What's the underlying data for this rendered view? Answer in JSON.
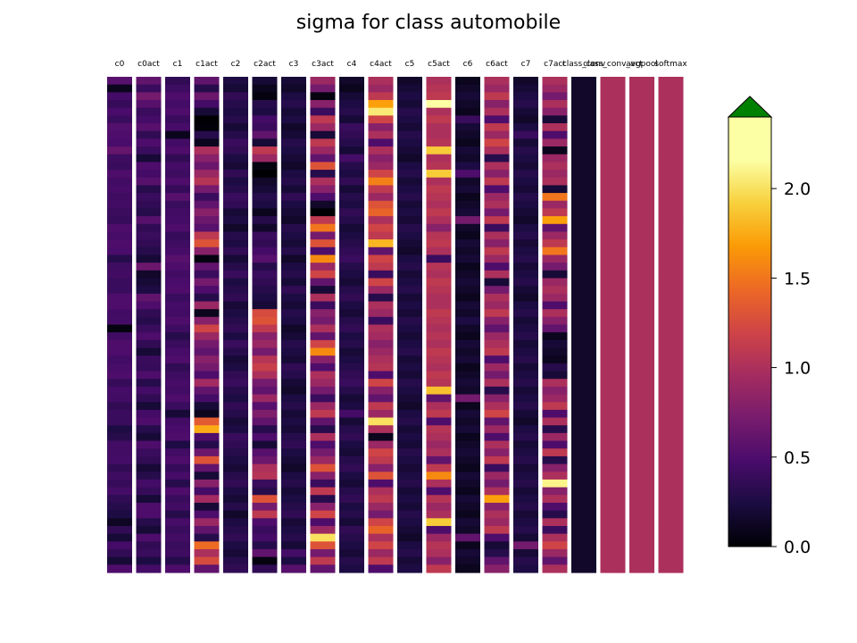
{
  "chart_data": {
    "type": "heatmap",
    "title": "sigma for class automobile",
    "columns": [
      "c0",
      "c0act",
      "c1",
      "c1act",
      "c2",
      "c2act",
      "c3",
      "c3act",
      "c4",
      "c4act",
      "c5",
      "c5act",
      "c6",
      "c6act",
      "c7",
      "c7act",
      "class_conv",
      "class_conv_act",
      "avgpool",
      "softmax"
    ],
    "rows_per_column": 64,
    "colorbar": {
      "cmap": "inferno",
      "vmin": 0.0,
      "vmax": 2.4,
      "ticks": [
        0.0,
        0.5,
        1.0,
        1.5,
        2.0
      ],
      "tick_labels": [
        "0.0",
        "0.5",
        "1.0",
        "1.5",
        "2.0"
      ],
      "extend": "max",
      "extend_color": "#008000"
    },
    "values": {
      "c0": [
        0.55,
        0.1,
        0.45,
        0.38,
        0.48,
        0.4,
        0.52,
        0.5,
        0.48,
        0.62,
        0.42,
        0.4,
        0.5,
        0.44,
        0.46,
        0.43,
        0.44,
        0.4,
        0.38,
        0.5,
        0.46,
        0.5,
        0.48,
        0.3,
        0.42,
        0.44,
        0.4,
        0.4,
        0.5,
        0.5,
        0.44,
        0.45,
        0.05,
        0.44,
        0.5,
        0.5,
        0.44,
        0.47,
        0.5,
        0.38,
        0.45,
        0.44,
        0.35,
        0.4,
        0.4,
        0.25,
        0.3,
        0.44,
        0.44,
        0.45,
        0.35,
        0.43,
        0.38,
        0.45,
        0.34,
        0.3,
        0.25,
        0.12,
        0.35,
        0.2,
        0.45,
        0.35,
        0.2,
        0.5
      ],
      "c0act": [
        0.6,
        0.4,
        0.7,
        0.55,
        0.4,
        0.45,
        0.55,
        0.35,
        0.5,
        0.4,
        0.2,
        0.5,
        0.45,
        0.55,
        0.3,
        0.4,
        0.35,
        0.3,
        0.55,
        0.35,
        0.4,
        0.35,
        0.3,
        0.2,
        0.65,
        0.15,
        0.2,
        0.25,
        0.6,
        0.5,
        0.35,
        0.3,
        0.4,
        0.5,
        0.35,
        0.2,
        0.4,
        0.38,
        0.5,
        0.3,
        0.45,
        0.35,
        0.2,
        0.45,
        0.5,
        0.3,
        0.2,
        0.5,
        0.4,
        0.35,
        0.2,
        0.3,
        0.45,
        0.38,
        0.2,
        0.5,
        0.5,
        0.3,
        0.2,
        0.5,
        0.35,
        0.4,
        0.25,
        0.45
      ],
      "c1": [
        0.35,
        0.42,
        0.5,
        0.45,
        0.5,
        0.4,
        0.46,
        0.1,
        0.44,
        0.5,
        0.35,
        0.45,
        0.42,
        0.5,
        0.38,
        0.55,
        0.4,
        0.44,
        0.45,
        0.5,
        0.38,
        0.42,
        0.46,
        0.55,
        0.5,
        0.44,
        0.48,
        0.5,
        0.4,
        0.45,
        0.44,
        0.5,
        0.42,
        0.3,
        0.4,
        0.46,
        0.5,
        0.35,
        0.42,
        0.46,
        0.44,
        0.5,
        0.4,
        0.2,
        0.44,
        0.48,
        0.5,
        0.25,
        0.44,
        0.5,
        0.38,
        0.46,
        0.3,
        0.5,
        0.4,
        0.44,
        0.3,
        0.46,
        0.4,
        0.44,
        0.4,
        0.42,
        0.3,
        0.5
      ],
      "c1act": [
        0.6,
        0.3,
        0.65,
        0.45,
        0.2,
        0.0,
        0.02,
        0.3,
        0.1,
        1.0,
        0.8,
        0.65,
        0.9,
        1.05,
        0.7,
        0.4,
        0.6,
        0.8,
        0.65,
        0.55,
        1.1,
        1.3,
        0.8,
        0.05,
        0.6,
        0.4,
        0.7,
        0.5,
        0.3,
        0.9,
        0.1,
        0.8,
        1.2,
        0.9,
        0.7,
        0.6,
        0.8,
        0.7,
        0.5,
        0.95,
        0.6,
        0.45,
        0.2,
        0.1,
        1.35,
        1.75,
        0.5,
        0.3,
        0.65,
        1.3,
        0.6,
        0.2,
        0.8,
        0.45,
        0.95,
        0.2,
        0.5,
        0.9,
        0.6,
        0.3,
        1.45,
        1.0,
        1.25,
        0.6
      ],
      "c2": [
        0.25,
        0.2,
        0.35,
        0.3,
        0.25,
        0.3,
        0.2,
        0.3,
        0.4,
        0.35,
        0.25,
        0.2,
        0.35,
        0.25,
        0.3,
        0.4,
        0.35,
        0.2,
        0.25,
        0.15,
        0.3,
        0.25,
        0.35,
        0.2,
        0.3,
        0.4,
        0.25,
        0.3,
        0.35,
        0.2,
        0.25,
        0.3,
        0.35,
        0.25,
        0.4,
        0.3,
        0.2,
        0.25,
        0.35,
        0.4,
        0.3,
        0.25,
        0.35,
        0.3,
        0.2,
        0.25,
        0.4,
        0.35,
        0.3,
        0.25,
        0.2,
        0.3,
        0.35,
        0.25,
        0.2,
        0.3,
        0.15,
        0.25,
        0.3,
        0.35,
        0.25,
        0.2,
        0.3,
        0.35
      ],
      "c2act": [
        0.2,
        0.1,
        0.05,
        0.3,
        0.25,
        0.45,
        0.4,
        0.6,
        0.2,
        1.1,
        0.9,
        0.05,
        0.0,
        0.15,
        0.2,
        0.3,
        0.25,
        0.1,
        0.3,
        0.15,
        0.4,
        0.35,
        0.45,
        0.55,
        0.3,
        0.4,
        0.35,
        0.3,
        0.25,
        0.2,
        1.25,
        1.3,
        1.1,
        0.8,
        0.9,
        0.7,
        1.05,
        1.15,
        1.0,
        0.7,
        0.6,
        0.9,
        0.55,
        0.75,
        0.6,
        0.3,
        0.5,
        0.2,
        0.55,
        0.65,
        1.0,
        1.05,
        0.4,
        0.3,
        1.3,
        0.7,
        1.1,
        0.5,
        0.4,
        0.45,
        0.3,
        0.6,
        0.05,
        0.35
      ],
      "c3": [
        0.2,
        0.15,
        0.25,
        0.3,
        0.2,
        0.25,
        0.15,
        0.2,
        0.3,
        0.25,
        0.2,
        0.15,
        0.25,
        0.3,
        0.2,
        0.35,
        0.25,
        0.2,
        0.15,
        0.3,
        0.25,
        0.2,
        0.3,
        0.15,
        0.25,
        0.3,
        0.2,
        0.35,
        0.25,
        0.2,
        0.3,
        0.25,
        0.15,
        0.2,
        0.3,
        0.25,
        0.2,
        0.35,
        0.3,
        0.2,
        0.15,
        0.25,
        0.3,
        0.2,
        0.25,
        0.2,
        0.3,
        0.35,
        0.25,
        0.2,
        0.15,
        0.25,
        0.3,
        0.2,
        0.25,
        0.3,
        0.35,
        0.2,
        0.25,
        0.3,
        0.2,
        0.45,
        0.25,
        0.55
      ],
      "c3act": [
        0.9,
        0.7,
        0.05,
        0.8,
        0.4,
        1.1,
        0.9,
        0.2,
        1.1,
        0.9,
        0.6,
        1.3,
        0.3,
        1.0,
        0.8,
        0.5,
        0.15,
        0.0,
        1.1,
        1.5,
        0.7,
        1.3,
        0.5,
        1.6,
        0.9,
        1.2,
        0.6,
        0.2,
        1.0,
        0.4,
        0.8,
        0.7,
        1.0,
        0.6,
        1.2,
        1.6,
        0.8,
        0.5,
        1.0,
        0.9,
        0.7,
        0.4,
        0.9,
        1.1,
        0.6,
        0.3,
        1.0,
        0.5,
        0.7,
        0.9,
        1.3,
        0.8,
        0.4,
        1.1,
        0.3,
        0.8,
        1.2,
        0.5,
        0.9,
        2.0,
        1.3,
        0.7,
        1.1,
        0.6
      ],
      "c4": [
        0.15,
        0.1,
        0.2,
        0.25,
        0.3,
        0.2,
        0.4,
        0.35,
        0.3,
        0.2,
        0.45,
        0.3,
        0.25,
        0.35,
        0.2,
        0.3,
        0.25,
        0.35,
        0.3,
        0.2,
        0.25,
        0.3,
        0.35,
        0.4,
        0.3,
        0.25,
        0.2,
        0.3,
        0.35,
        0.25,
        0.2,
        0.3,
        0.35,
        0.25,
        0.3,
        0.2,
        0.25,
        0.3,
        0.35,
        0.4,
        0.3,
        0.2,
        0.25,
        0.45,
        0.2,
        0.3,
        0.35,
        0.25,
        0.2,
        0.3,
        0.35,
        0.25,
        0.2,
        0.3,
        0.35,
        0.25,
        0.3,
        0.2,
        0.35,
        0.3,
        0.25,
        0.2,
        0.3,
        0.25
      ],
      "c4act": [
        1.0,
        0.9,
        1.1,
        1.7,
        2.05,
        1.2,
        0.8,
        1.0,
        0.5,
        1.0,
        0.8,
        0.9,
        1.2,
        1.55,
        1.1,
        0.9,
        1.3,
        1.4,
        1.0,
        1.2,
        1.1,
        1.8,
        0.6,
        1.2,
        1.1,
        0.4,
        1.2,
        0.9,
        0.3,
        1.0,
        0.9,
        0.4,
        1.0,
        0.95,
        0.8,
        0.9,
        1.0,
        1.05,
        0.5,
        1.2,
        0.8,
        0.6,
        1.1,
        0.9,
        2.0,
        1.0,
        0.1,
        0.9,
        1.2,
        1.1,
        0.8,
        1.3,
        0.5,
        1.0,
        1.1,
        0.9,
        0.7,
        1.2,
        1.4,
        1.0,
        1.2,
        0.9,
        1.1,
        0.5
      ],
      "c5": [
        0.15,
        0.2,
        0.25,
        0.2,
        0.3,
        0.25,
        0.2,
        0.3,
        0.25,
        0.2,
        0.15,
        0.25,
        0.3,
        0.2,
        0.25,
        0.3,
        0.2,
        0.25,
        0.2,
        0.3,
        0.25,
        0.2,
        0.15,
        0.25,
        0.3,
        0.2,
        0.25,
        0.3,
        0.2,
        0.25,
        0.2,
        0.3,
        0.25,
        0.2,
        0.25,
        0.3,
        0.2,
        0.25,
        0.2,
        0.3,
        0.25,
        0.2,
        0.15,
        0.25,
        0.3,
        0.2,
        0.25,
        0.2,
        0.3,
        0.25,
        0.2,
        0.25,
        0.3,
        0.2,
        0.25,
        0.2,
        0.3,
        0.25,
        0.2,
        0.15,
        0.25,
        0.3,
        0.2,
        0.25
      ],
      "c5act": [
        1.0,
        1.05,
        1.1,
        2.35,
        1.0,
        1.1,
        1.0,
        1.0,
        1.05,
        1.9,
        1.0,
        1.05,
        1.9,
        1.0,
        1.1,
        1.05,
        1.0,
        1.1,
        1.0,
        0.8,
        1.05,
        1.1,
        1.0,
        0.4,
        1.05,
        1.0,
        1.1,
        1.05,
        1.0,
        1.0,
        1.1,
        1.05,
        1.0,
        1.05,
        1.0,
        1.1,
        1.05,
        1.0,
        1.1,
        1.05,
        1.85,
        0.6,
        1.0,
        1.1,
        0.5,
        1.05,
        1.0,
        0.9,
        1.0,
        0.6,
        1.1,
        1.6,
        1.0,
        0.5,
        1.05,
        0.9,
        1.0,
        1.9,
        0.5,
        0.9,
        1.05,
        1.0,
        0.8,
        1.1
      ],
      "c6": [
        0.1,
        0.15,
        0.2,
        0.15,
        0.1,
        0.4,
        0.2,
        0.15,
        0.1,
        0.2,
        0.15,
        0.25,
        0.5,
        0.15,
        0.2,
        0.1,
        0.15,
        0.2,
        0.7,
        0.15,
        0.1,
        0.2,
        0.15,
        0.2,
        0.1,
        0.15,
        0.2,
        0.15,
        0.1,
        0.2,
        0.15,
        0.25,
        0.15,
        0.1,
        0.2,
        0.15,
        0.2,
        0.1,
        0.15,
        0.2,
        0.15,
        0.7,
        0.1,
        0.2,
        0.15,
        0.2,
        0.1,
        0.15,
        0.2,
        0.15,
        0.1,
        0.2,
        0.15,
        0.1,
        0.2,
        0.15,
        0.1,
        0.2,
        0.15,
        0.6,
        0.1,
        0.2,
        0.15,
        0.1
      ],
      "c6act": [
        1.0,
        0.9,
        1.1,
        0.8,
        1.0,
        0.5,
        1.1,
        0.9,
        1.2,
        1.0,
        0.3,
        1.0,
        0.8,
        1.1,
        0.5,
        0.9,
        1.0,
        0.7,
        1.1,
        0.4,
        1.0,
        0.8,
        1.1,
        0.9,
        0.5,
        1.0,
        0.2,
        0.7,
        1.0,
        0.9,
        1.1,
        0.8,
        0.6,
        0.9,
        1.0,
        1.1,
        0.5,
        0.9,
        0.7,
        1.0,
        0.3,
        0.8,
        1.0,
        1.2,
        0.6,
        0.9,
        0.5,
        1.0,
        0.8,
        1.1,
        0.4,
        0.9,
        0.7,
        1.0,
        1.7,
        0.8,
        1.0,
        0.9,
        1.1,
        0.5,
        0.2,
        0.3,
        0.6,
        0.8
      ],
      "c7": [
        0.15,
        0.2,
        0.25,
        0.3,
        0.2,
        0.15,
        0.25,
        0.4,
        0.2,
        0.3,
        0.25,
        0.2,
        0.3,
        0.25,
        0.2,
        0.3,
        0.25,
        0.2,
        0.15,
        0.25,
        0.3,
        0.2,
        0.25,
        0.3,
        0.2,
        0.25,
        0.3,
        0.2,
        0.15,
        0.25,
        0.3,
        0.2,
        0.25,
        0.3,
        0.2,
        0.25,
        0.3,
        0.2,
        0.25,
        0.3,
        0.2,
        0.25,
        0.3,
        0.2,
        0.15,
        0.25,
        0.3,
        0.2,
        0.25,
        0.3,
        0.2,
        0.25,
        0.3,
        0.2,
        0.25,
        0.3,
        0.2,
        0.25,
        0.3,
        0.2,
        0.7,
        0.2,
        0.3,
        0.25
      ],
      "c7act": [
        1.0,
        0.9,
        0.7,
        1.0,
        0.8,
        0.2,
        1.0,
        0.5,
        0.9,
        0.1,
        0.9,
        1.0,
        0.9,
        1.0,
        0.2,
        1.5,
        0.9,
        1.1,
        1.7,
        0.6,
        0.9,
        1.1,
        1.5,
        0.9,
        0.7,
        0.2,
        0.9,
        1.0,
        0.9,
        0.5,
        1.0,
        0.8,
        0.6,
        0.1,
        0.2,
        0.15,
        0.1,
        0.3,
        0.2,
        1.0,
        0.8,
        0.9,
        1.1,
        0.5,
        1.0,
        0.3,
        0.9,
        0.5,
        1.1,
        0.3,
        0.8,
        1.0,
        2.1,
        0.8,
        1.0,
        0.5,
        0.3,
        1.0,
        0.4,
        1.0,
        1.2,
        0.9,
        0.6,
        1.0
      ],
      "class_conv": [
        0.15,
        0.15,
        0.15,
        0.15,
        0.15,
        0.15,
        0.15,
        0.15,
        0.15,
        0.15,
        0.15,
        0.15,
        0.15,
        0.15,
        0.15,
        0.15,
        0.15,
        0.15,
        0.15,
        0.15,
        0.15,
        0.15,
        0.15,
        0.15,
        0.15,
        0.15,
        0.15,
        0.15,
        0.15,
        0.15,
        0.15,
        0.15,
        0.15,
        0.15,
        0.15,
        0.15,
        0.15,
        0.15,
        0.15,
        0.15,
        0.15,
        0.15,
        0.15,
        0.15,
        0.15,
        0.15,
        0.15,
        0.15,
        0.15,
        0.15,
        0.15,
        0.15,
        0.15,
        0.15,
        0.15,
        0.15,
        0.15,
        0.15,
        0.15,
        0.15,
        0.15,
        0.15,
        0.15,
        0.15
      ],
      "class_conv_act": [
        1.0,
        1.0,
        1.0,
        1.0,
        1.0,
        1.0,
        1.0,
        1.0,
        1.0,
        1.0,
        1.0,
        1.0,
        1.0,
        1.0,
        1.0,
        1.0,
        1.0,
        1.0,
        1.0,
        1.0,
        1.0,
        1.0,
        1.0,
        1.0,
        1.0,
        1.0,
        1.0,
        1.0,
        1.0,
        1.0,
        1.0,
        1.0,
        1.0,
        1.0,
        1.0,
        1.0,
        1.0,
        1.0,
        1.0,
        1.0,
        1.0,
        1.0,
        1.0,
        1.0,
        1.0,
        1.0,
        1.0,
        1.0,
        1.0,
        1.0,
        1.0,
        1.0,
        1.0,
        1.0,
        1.0,
        1.0,
        1.0,
        1.0,
        1.0,
        1.0,
        1.0,
        1.0,
        1.0,
        1.0
      ],
      "avgpool": [
        1.0,
        1.0,
        1.0,
        1.0,
        1.0,
        1.0,
        1.0,
        1.0,
        1.0,
        1.0,
        1.0,
        1.0,
        1.0,
        1.0,
        1.0,
        1.0,
        1.0,
        1.0,
        1.0,
        1.0,
        1.0,
        1.0,
        1.0,
        1.0,
        1.0,
        1.0,
        1.0,
        1.0,
        1.0,
        1.0,
        1.0,
        1.0,
        1.0,
        1.0,
        1.0,
        1.0,
        1.0,
        1.0,
        1.0,
        1.0,
        1.0,
        1.0,
        1.0,
        1.0,
        1.0,
        1.0,
        1.0,
        1.0,
        1.0,
        1.0,
        1.0,
        1.0,
        1.0,
        1.0,
        1.0,
        1.0,
        1.0,
        1.0,
        1.0,
        1.0,
        1.0,
        1.0,
        1.0,
        1.0
      ],
      "softmax": [
        1.0,
        1.0,
        1.0,
        1.0,
        1.0,
        1.0,
        1.0,
        1.0,
        1.0,
        1.0,
        1.0,
        1.0,
        1.0,
        1.0,
        1.0,
        1.0,
        1.0,
        1.0,
        1.0,
        1.0,
        1.0,
        1.0,
        1.0,
        1.0,
        1.0,
        1.0,
        1.0,
        1.0,
        1.0,
        1.0,
        1.0,
        1.0,
        1.0,
        1.0,
        1.0,
        1.0,
        1.0,
        1.0,
        1.0,
        1.0,
        1.0,
        1.0,
        1.0,
        1.0,
        1.0,
        1.0,
        1.0,
        1.0,
        1.0,
        1.0,
        1.0,
        1.0,
        1.0,
        1.0,
        1.0,
        1.0,
        1.0,
        1.0,
        1.0,
        1.0,
        1.0,
        1.0,
        1.0,
        1.0
      ]
    }
  }
}
